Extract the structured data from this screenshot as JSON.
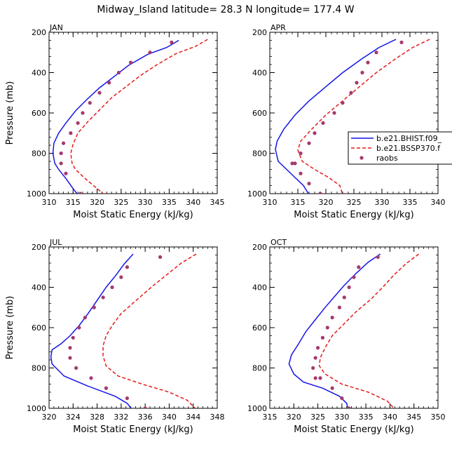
{
  "title": "Midway_Island  latitude= 28.3 N longitude= 177.4 W",
  "colors": {
    "hist": "#1515e6",
    "ssp": "#e61a1a",
    "raobs": "#a43a6e"
  },
  "legend": {
    "entries": [
      {
        "label": "b.e21.BHIST.f09_",
        "style": "solid",
        "color": "#1515e6"
      },
      {
        "label": "b.e21.BSSP370.f",
        "style": "dashed",
        "color": "#e61a1a"
      },
      {
        "label": "raobs",
        "style": "marker",
        "color": "#a43a6e"
      }
    ]
  },
  "chart_data": [
    {
      "type": "line",
      "panel": "JAN",
      "xlabel": "Moist Static Energy (kJ/kg)",
      "ylabel": "Pressure (mb)",
      "xlim": [
        310,
        345
      ],
      "xticks": [
        310,
        315,
        320,
        325,
        330,
        335,
        340,
        345
      ],
      "ylim": [
        200,
        1000
      ],
      "yticks": [
        200,
        400,
        600,
        800,
        1000
      ],
      "series": [
        {
          "name": "b.e21.BHIST.f09_",
          "style": "solid",
          "x": [
            337.0,
            334.5,
            330.5,
            326.5,
            323.5,
            320.5,
            318.0,
            315.5,
            313.5,
            312.0,
            311.0,
            310.8,
            311.2,
            312.0,
            313.5,
            315.0,
            316.0
          ],
          "y": [
            240,
            275,
            310,
            365,
            420,
            475,
            530,
            590,
            650,
            700,
            750,
            800,
            850,
            880,
            925,
            975,
            1005
          ]
        },
        {
          "name": "b.e21.BSSP370.f",
          "style": "dashed",
          "x": [
            343.0,
            340.5,
            336.5,
            332.5,
            329.0,
            326.0,
            323.0,
            320.5,
            318.0,
            316.0,
            315.0,
            314.5,
            314.8,
            315.5,
            317.5,
            320.0,
            321.5
          ],
          "y": [
            235,
            270,
            305,
            360,
            415,
            470,
            525,
            585,
            645,
            700,
            755,
            800,
            850,
            880,
            925,
            975,
            1005
          ]
        },
        {
          "name": "raobs",
          "style": "markers",
          "x": [
            335.5,
            331.0,
            327.0,
            324.5,
            322.5,
            320.5,
            318.5,
            317.0,
            316.0,
            314.5,
            313.0,
            312.5,
            312.5,
            313.5,
            316.5
          ],
          "y": [
            250,
            300,
            350,
            400,
            450,
            500,
            550,
            600,
            650,
            700,
            750,
            800,
            850,
            900,
            1000
          ]
        }
      ]
    },
    {
      "type": "line",
      "panel": "APR",
      "xlabel": "Moist Static Energy (kJ/kg)",
      "ylabel": "",
      "xlim": [
        310,
        340
      ],
      "xticks": [
        310,
        315,
        320,
        325,
        330,
        335,
        340
      ],
      "ylim": [
        200,
        1000
      ],
      "yticks": [
        200,
        400,
        600,
        800,
        1000
      ],
      "series": [
        {
          "name": "b.e21.BHIST.f09_",
          "style": "solid",
          "x": [
            332.5,
            329.5,
            326.5,
            323.0,
            320.0,
            317.0,
            314.5,
            312.5,
            311.3,
            311.0,
            311.5,
            313.0,
            314.5,
            316.0,
            317.0
          ],
          "y": [
            235,
            275,
            330,
            400,
            470,
            540,
            610,
            680,
            740,
            780,
            840,
            880,
            920,
            960,
            1005
          ]
        },
        {
          "name": "b.e21.BSSP370.f",
          "style": "dashed",
          "x": [
            338.5,
            335.5,
            332.5,
            329.0,
            326.0,
            323.0,
            320.0,
            317.5,
            315.5,
            315.0,
            315.8,
            318.0,
            320.5,
            322.5,
            323.0
          ],
          "y": [
            235,
            275,
            330,
            400,
            470,
            540,
            610,
            680,
            740,
            785,
            840,
            880,
            920,
            960,
            1005
          ]
        },
        {
          "name": "raobs",
          "style": "markers",
          "x": [
            333.5,
            329.0,
            327.5,
            326.5,
            325.5,
            324.5,
            323.0,
            321.5,
            319.5,
            318.0,
            317.0,
            315.5,
            314.5,
            314.0,
            315.5,
            317.0,
            319.0
          ],
          "y": [
            250,
            300,
            350,
            400,
            450,
            500,
            550,
            600,
            650,
            700,
            750,
            800,
            850,
            850,
            900,
            950,
            1000
          ]
        }
      ]
    },
    {
      "type": "line",
      "panel": "JUL",
      "xlabel": "Moist Static Energy (kJ/kg)",
      "ylabel": "Pressure (mb)",
      "xlim": [
        320,
        348
      ],
      "xticks": [
        320,
        324,
        328,
        332,
        336,
        340,
        344,
        348
      ],
      "ylim": [
        200,
        1000
      ],
      "yticks": [
        200,
        400,
        600,
        800,
        1000
      ],
      "series": [
        {
          "name": "b.e21.BHIST.f09_",
          "style": "solid",
          "x": [
            334.0,
            332.5,
            331.0,
            329.5,
            328.0,
            326.5,
            325.0,
            323.5,
            322.0,
            320.5,
            320.3,
            320.5,
            322.5,
            326.5,
            331.0,
            333.0,
            333.8
          ],
          "y": [
            235,
            285,
            345,
            400,
            465,
            530,
            590,
            640,
            680,
            710,
            745,
            780,
            840,
            890,
            940,
            975,
            1005
          ]
        },
        {
          "name": "b.e21.BSSP370.f",
          "style": "dashed",
          "x": [
            344.5,
            342.0,
            339.5,
            337.0,
            334.5,
            332.0,
            330.5,
            329.5,
            329.0,
            329.0,
            329.5,
            331.5,
            335.5,
            340.0,
            343.0,
            344.5
          ],
          "y": [
            235,
            280,
            340,
            400,
            465,
            530,
            590,
            640,
            690,
            740,
            790,
            840,
            880,
            920,
            960,
            1005
          ]
        },
        {
          "name": "raobs",
          "style": "markers",
          "x": [
            338.5,
            333.0,
            332.0,
            330.5,
            329.0,
            327.5,
            326.0,
            325.0,
            324.0,
            323.5,
            323.5,
            324.5,
            327.0,
            329.5,
            333.0,
            336.0
          ],
          "y": [
            250,
            300,
            350,
            400,
            450,
            500,
            550,
            600,
            650,
            700,
            750,
            800,
            850,
            900,
            950,
            1000
          ]
        }
      ]
    },
    {
      "type": "line",
      "panel": "OCT",
      "xlabel": "Moist Static Energy (kJ/kg)",
      "ylabel": "",
      "xlim": [
        315,
        350
      ],
      "xticks": [
        315,
        320,
        325,
        330,
        335,
        340,
        345,
        350
      ],
      "ylim": [
        200,
        1000
      ],
      "yticks": [
        200,
        400,
        600,
        800,
        1000
      ],
      "series": [
        {
          "name": "b.e21.BHIST.f09_",
          "style": "solid",
          "x": [
            338.0,
            335.5,
            333.0,
            330.5,
            328.5,
            326.5,
            324.5,
            322.5,
            321.0,
            319.5,
            319.0,
            320.0,
            322.0,
            326.0,
            329.5,
            331.0,
            331.3
          ],
          "y": [
            235,
            275,
            330,
            390,
            445,
            500,
            560,
            620,
            680,
            735,
            780,
            830,
            870,
            900,
            940,
            975,
            1005
          ]
        },
        {
          "name": "b.e21.BSSP370.f",
          "style": "dashed",
          "x": [
            346.0,
            343.5,
            341.0,
            338.5,
            336.0,
            333.0,
            330.5,
            328.0,
            326.5,
            325.5,
            325.3,
            326.5,
            330.0,
            335.5,
            339.5,
            341.0
          ],
          "y": [
            235,
            280,
            335,
            400,
            460,
            520,
            580,
            640,
            700,
            750,
            790,
            830,
            880,
            920,
            965,
            1005
          ]
        },
        {
          "name": "raobs",
          "style": "markers",
          "x": [
            337.5,
            333.5,
            332.5,
            331.5,
            330.5,
            329.5,
            328.0,
            327.0,
            326.0,
            325.0,
            324.5,
            324.0,
            324.5,
            325.5,
            328.0,
            330.0,
            331.5
          ],
          "y": [
            250,
            300,
            350,
            400,
            450,
            500,
            550,
            600,
            650,
            700,
            750,
            800,
            850,
            850,
            900,
            950,
            1000
          ]
        }
      ]
    }
  ]
}
